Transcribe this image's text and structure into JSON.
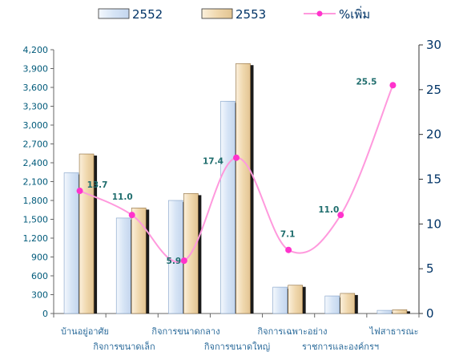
{
  "chart_data": {
    "type": "bar",
    "categories": [
      "บ้านอยู่อาศัย",
      "กิจการขนาดเล็ก",
      "กิจการขนาดกลาง",
      "กิจการขนาดใหญ่",
      "กิจการเฉพาะอย่าง",
      "ราชการและองค์กรฯ",
      "ไฟสาธารณะ"
    ],
    "series": [
      {
        "name": "2552",
        "axis": "left",
        "values": [
          2240,
          1520,
          1800,
          3380,
          420,
          280,
          50
        ]
      },
      {
        "name": "2553",
        "axis": "left",
        "values": [
          2540,
          1680,
          1910,
          3980,
          450,
          320,
          60
        ]
      },
      {
        "name": "%เพิ่ม",
        "axis": "right",
        "type": "line",
        "values": [
          13.7,
          11.0,
          5.9,
          17.4,
          7.1,
          11.0,
          25.5
        ]
      }
    ],
    "data_labels": [
      "13.7",
      "11.0",
      "5.9",
      "17.4",
      "7.1",
      "11.0",
      "25.5"
    ],
    "yleft_ticks": [
      "0",
      "300",
      "600",
      "900",
      "1,200",
      "1,500",
      "1,800",
      "2,100",
      "2,400",
      "2,700",
      "3,000",
      "3,300",
      "3,600",
      "3,900",
      "4,200"
    ],
    "yright_ticks": [
      "0",
      "5",
      "10",
      "15",
      "20",
      "25",
      "30"
    ],
    "ylim_left": [
      0,
      4200
    ],
    "ylim_right": [
      0,
      30
    ],
    "grid": false,
    "legend_position": "top",
    "colors": {
      "bar_2552": "#dce8f6",
      "bar_2552_stroke": "#7f9fc7",
      "bar_2553": "#f3ddb8",
      "bar_2553_stroke": "#8c6a3a",
      "shadow": "#1a1a1a",
      "line": "#ff99dd",
      "marker": "#ff33cc",
      "axis": "#666666"
    }
  }
}
